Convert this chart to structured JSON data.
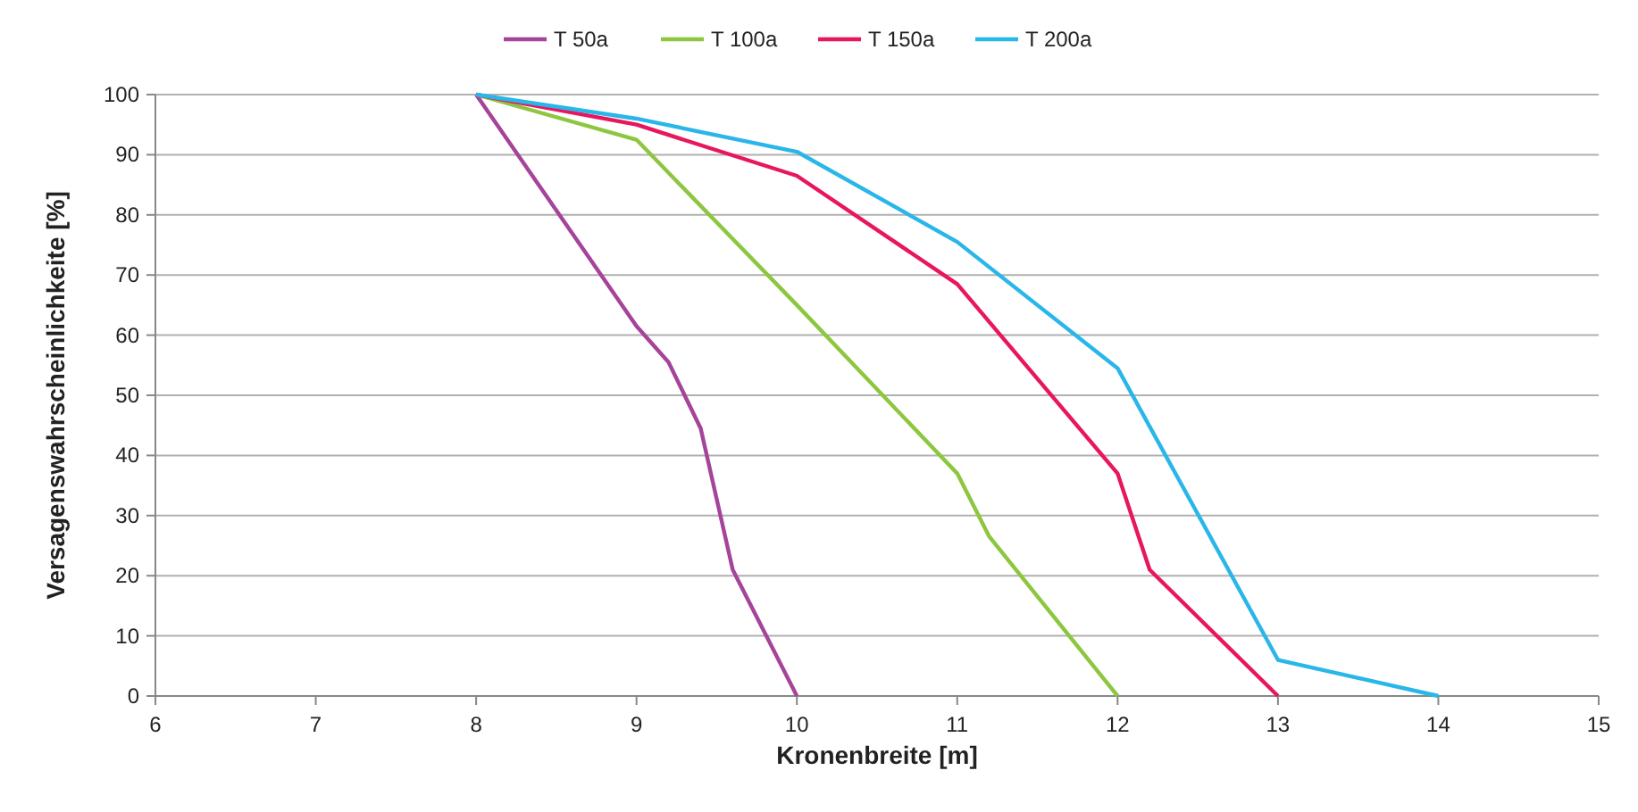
{
  "chart_data": {
    "type": "line",
    "xlabel": "Kronenbreite [m]",
    "ylabel": "Versagenswahrscheinlichkeite [%]",
    "xlim": [
      6,
      15
    ],
    "xticks": [
      6,
      7,
      8,
      9,
      10,
      11,
      12,
      13,
      14,
      15
    ],
    "ylim": [
      0,
      100
    ],
    "yticks": [
      0,
      10,
      20,
      30,
      40,
      50,
      60,
      70,
      80,
      90,
      100
    ],
    "grid": "y",
    "legend": "top",
    "marker": "none",
    "line_style": "solid",
    "series": [
      {
        "name": "T 50a",
        "color": "#a5449a",
        "x": [
          8,
          9,
          9.2,
          9.4,
          9.6,
          10
        ],
        "values": [
          100,
          61.5,
          55.5,
          44.5,
          21,
          0
        ]
      },
      {
        "name": "T 100a",
        "color": "#8dc63f",
        "x": [
          8,
          9,
          10,
          11,
          11.2,
          12
        ],
        "values": [
          100,
          92.5,
          65,
          37,
          26.5,
          0
        ]
      },
      {
        "name": "T 150a",
        "color": "#e8175d",
        "x": [
          8,
          9,
          10,
          11,
          12,
          12.2,
          13
        ],
        "values": [
          100,
          95,
          86.5,
          68.5,
          37,
          21,
          0
        ]
      },
      {
        "name": "T 200a",
        "color": "#29b6e8",
        "x": [
          8,
          9,
          10,
          11,
          12,
          13,
          14
        ],
        "values": [
          100,
          96,
          90.5,
          75.5,
          54.5,
          6,
          0
        ]
      }
    ]
  }
}
